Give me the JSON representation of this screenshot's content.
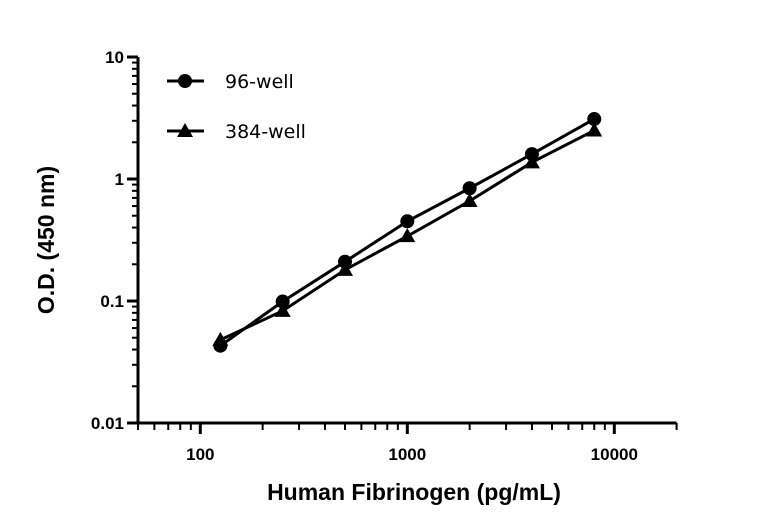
{
  "chart_data": {
    "type": "line",
    "title": "",
    "xlabel": "Human Fibrinogen (pg/mL)",
    "ylabel": "O.D. (450 nm)",
    "xscale": "log",
    "yscale": "log",
    "xlim": [
      50,
      20000
    ],
    "ylim": [
      0.01,
      10
    ],
    "x_ticks": [
      100,
      1000,
      10000
    ],
    "x_tick_labels": [
      "100",
      "1000",
      "10000"
    ],
    "y_ticks": [
      0.01,
      0.1,
      1,
      10
    ],
    "y_tick_labels": [
      "0.01",
      "0.1",
      "1",
      "10"
    ],
    "grid": false,
    "legend_position": "top-left",
    "x": [
      125,
      250,
      500,
      1000,
      2000,
      4000,
      8000
    ],
    "series": [
      {
        "name": "96-well",
        "marker": "circle",
        "color": "#000000",
        "values": [
          0.043,
          0.099,
          0.21,
          0.45,
          0.84,
          1.6,
          3.1
        ]
      },
      {
        "name": "384-well",
        "marker": "triangle",
        "color": "#000000",
        "values": [
          0.048,
          0.083,
          0.18,
          0.34,
          0.66,
          1.37,
          2.5
        ]
      }
    ]
  }
}
